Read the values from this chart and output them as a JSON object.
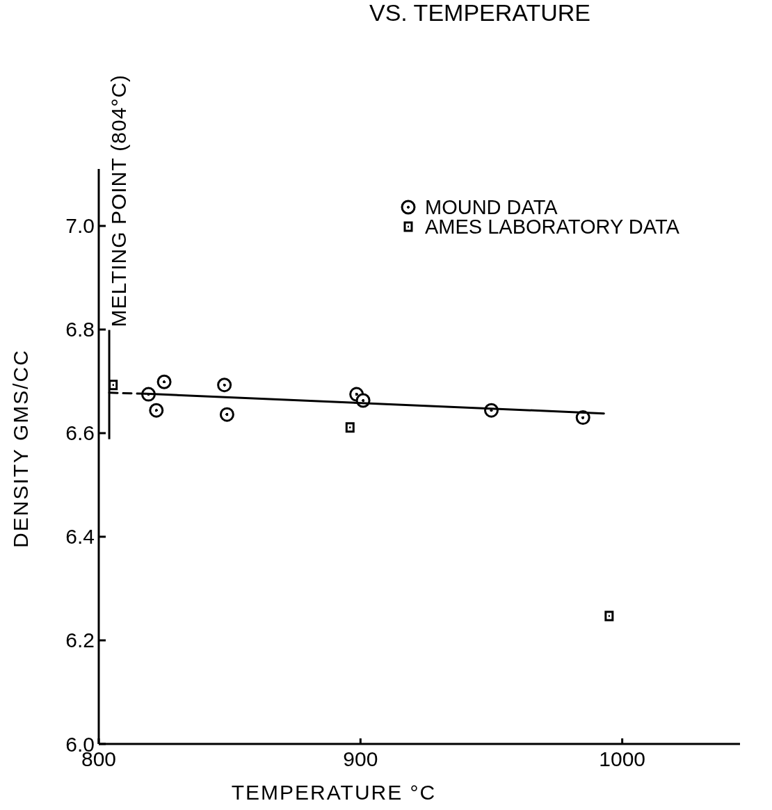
{
  "chart_data": {
    "type": "scatter",
    "title": "VS. TEMPERATURE",
    "xlabel": "TEMPERATURE °C",
    "ylabel": "DENSITY GMS/CC",
    "xlim": [
      800,
      1045
    ],
    "ylim": [
      6.0,
      7.11
    ],
    "xticks": [
      800,
      900,
      1000
    ],
    "yticks": [
      {
        "value": 6.0,
        "label": "6.0"
      },
      6.2,
      6.4,
      6.6,
      6.8,
      {
        "value": 7.0,
        "label": "7.0"
      }
    ],
    "grid": false,
    "legend": "top right",
    "series": [
      {
        "name": "MOUND DATA",
        "marker": "circle",
        "color": "#000000",
        "x": [
          819,
          822,
          825,
          848,
          849,
          898.5,
          901,
          950,
          985
        ],
        "values": [
          6.675,
          6.644,
          6.699,
          6.693,
          6.636,
          6.675,
          6.663,
          6.644,
          6.63
        ]
      },
      {
        "name": "AMES LABORATORY DATA",
        "marker": "square",
        "color": "#000000",
        "x": [
          805.5,
          896,
          995
        ],
        "values": [
          6.693,
          6.611,
          6.247
        ]
      },
      {
        "type": "line",
        "line_style": "dashed",
        "color": "#000000",
        "x": [
          804,
          818
        ],
        "values": [
          6.678,
          6.676
        ]
      },
      {
        "type": "line",
        "line_style": "solid",
        "color": "#000000",
        "x": [
          818,
          993
        ],
        "values": [
          6.676,
          6.638
        ]
      }
    ],
    "ref_lines": [
      {
        "axis": "x",
        "value": 804,
        "label": "MELTING POINT (804°C)",
        "color": "#000000"
      }
    ]
  }
}
